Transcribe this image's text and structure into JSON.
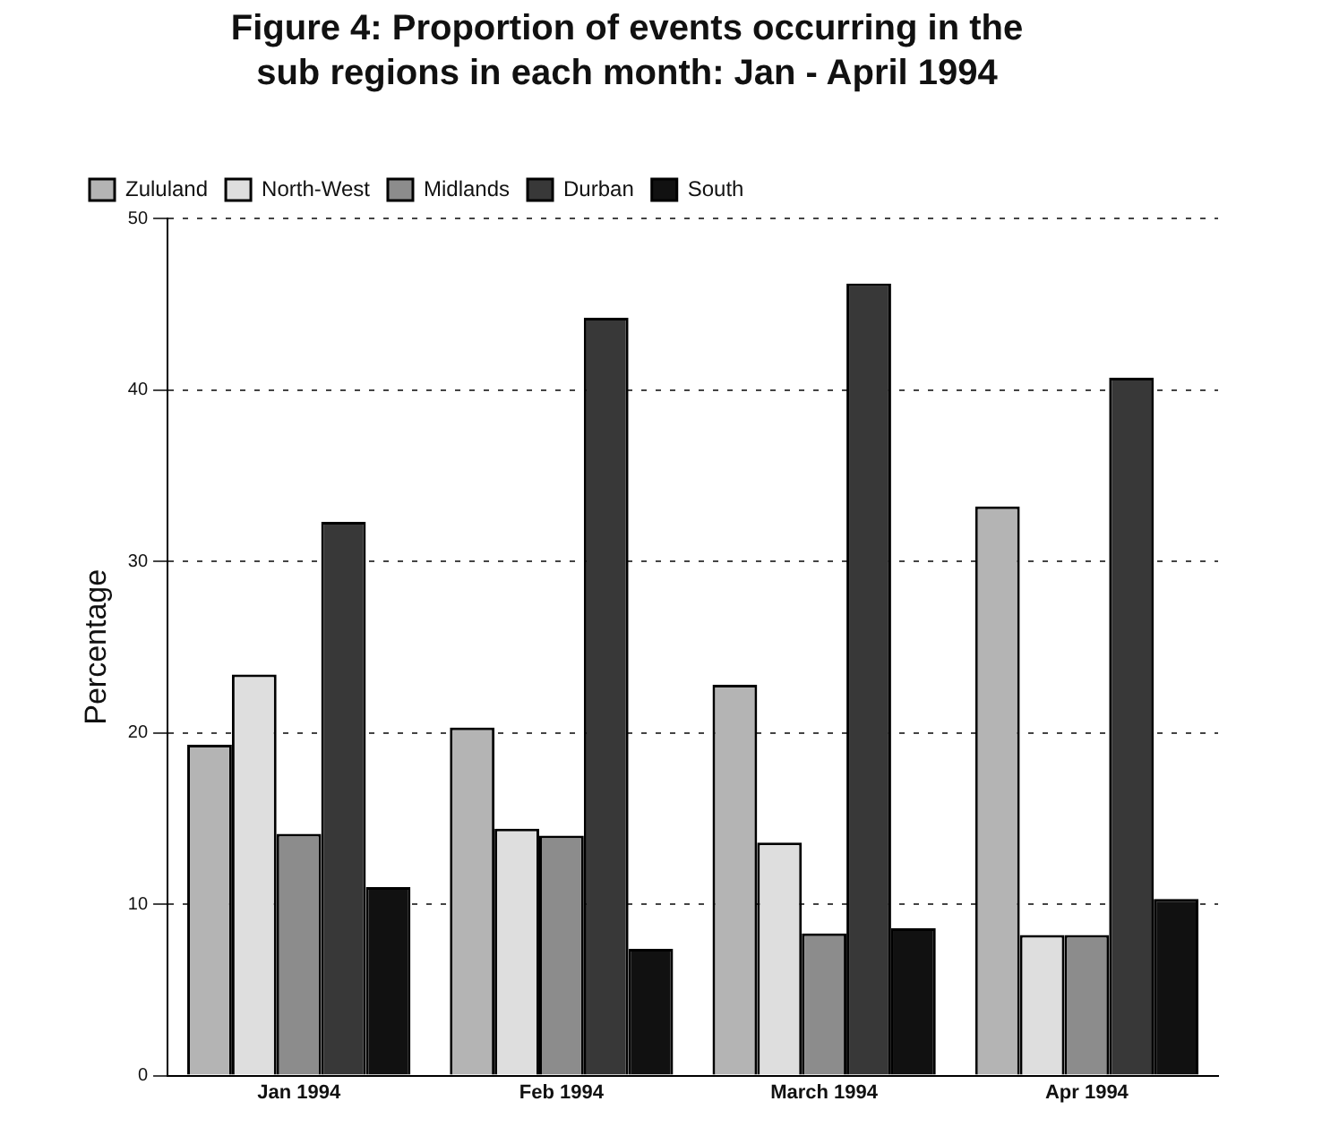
{
  "chart_data": {
    "type": "bar",
    "title": "Figure 4: Proportion of events occurring in the sub regions in each month: Jan - April 1994",
    "ylabel": "Percentage",
    "categories": [
      "Jan 1994",
      "Feb 1994",
      "March 1994",
      "Apr 1994"
    ],
    "series": [
      {
        "name": "Zululand",
        "color": "#b4b4b4",
        "values": [
          19.3,
          20.3,
          22.8,
          33.2
        ]
      },
      {
        "name": "North-West",
        "color": "#dedede",
        "values": [
          23.4,
          14.4,
          13.6,
          8.2
        ]
      },
      {
        "name": "Midlands",
        "color": "#8c8c8c",
        "values": [
          14.1,
          14.0,
          8.3,
          8.2
        ]
      },
      {
        "name": "Durban",
        "color": "#383838",
        "values": [
          32.3,
          44.2,
          46.2,
          40.7
        ]
      },
      {
        "name": "South",
        "color": "#111111",
        "values": [
          11.0,
          7.4,
          8.6,
          10.3
        ]
      }
    ],
    "ylim": [
      0,
      50
    ],
    "yticks": [
      0,
      10,
      20,
      30,
      40,
      50
    ],
    "grid": "y",
    "legend": "top left"
  }
}
